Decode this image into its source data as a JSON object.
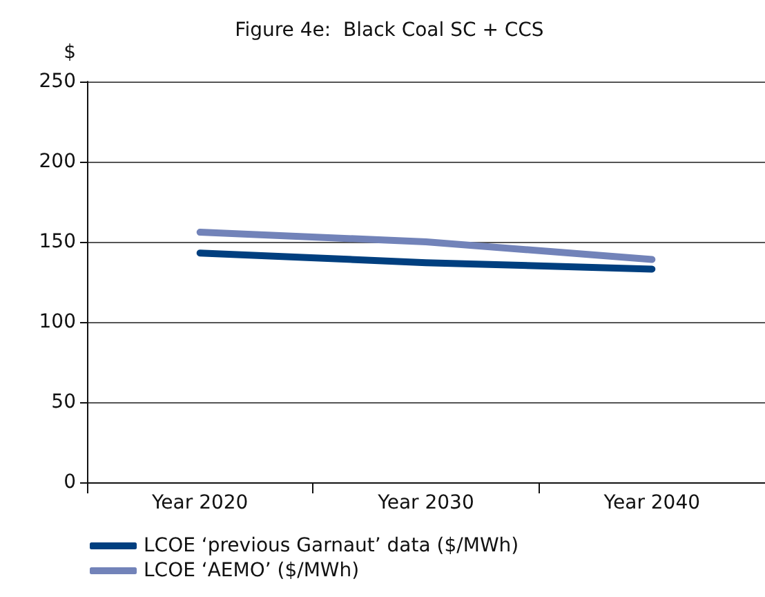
{
  "chart_data": {
    "type": "line",
    "title": "Figure 4e:  Black Coal SC + CCS",
    "ylabel": "$",
    "categories": [
      "Year 2020",
      "Year 2030",
      "Year 2040"
    ],
    "series": [
      {
        "name": "LCOE ‘previous Garnaut’ data ($/MWh)",
        "color": "#003f7f",
        "values": [
          143,
          137,
          133
        ]
      },
      {
        "name": "LCOE ‘AEMO’ ($/MWh)",
        "color": "#7283b9",
        "values": [
          156,
          150,
          139
        ]
      }
    ],
    "ylim": [
      0,
      250
    ],
    "yticks": [
      0,
      50,
      100,
      150,
      200,
      250
    ],
    "grid": "y",
    "legend": "bottom left",
    "marker": "none",
    "line_style": "solid"
  }
}
